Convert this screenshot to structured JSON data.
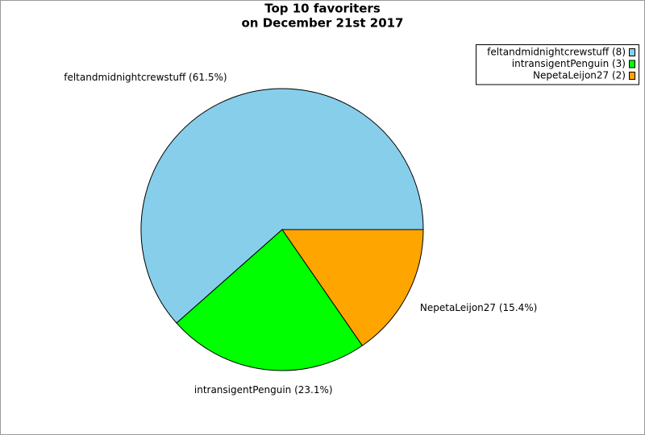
{
  "chart_data": {
    "type": "pie",
    "title": "Top 10 favoriters",
    "subtitle": "on December 21st 2017",
    "categories": [
      "feltandmidnightcrewstuff (8)",
      "intransigentPenguin (3)",
      "NepetaLeijon27 (2)"
    ],
    "values": [
      8,
      3,
      2
    ],
    "value_labels": [
      "feltandmidnightcrewstuff (61.5%)",
      "intransigentPenguin (23.1%)",
      "NepetaLeijon27 (15.4%)"
    ],
    "colors": [
      "#87ceeb",
      "#00ff00",
      "#ffa500"
    ],
    "legend": "upper-right"
  }
}
